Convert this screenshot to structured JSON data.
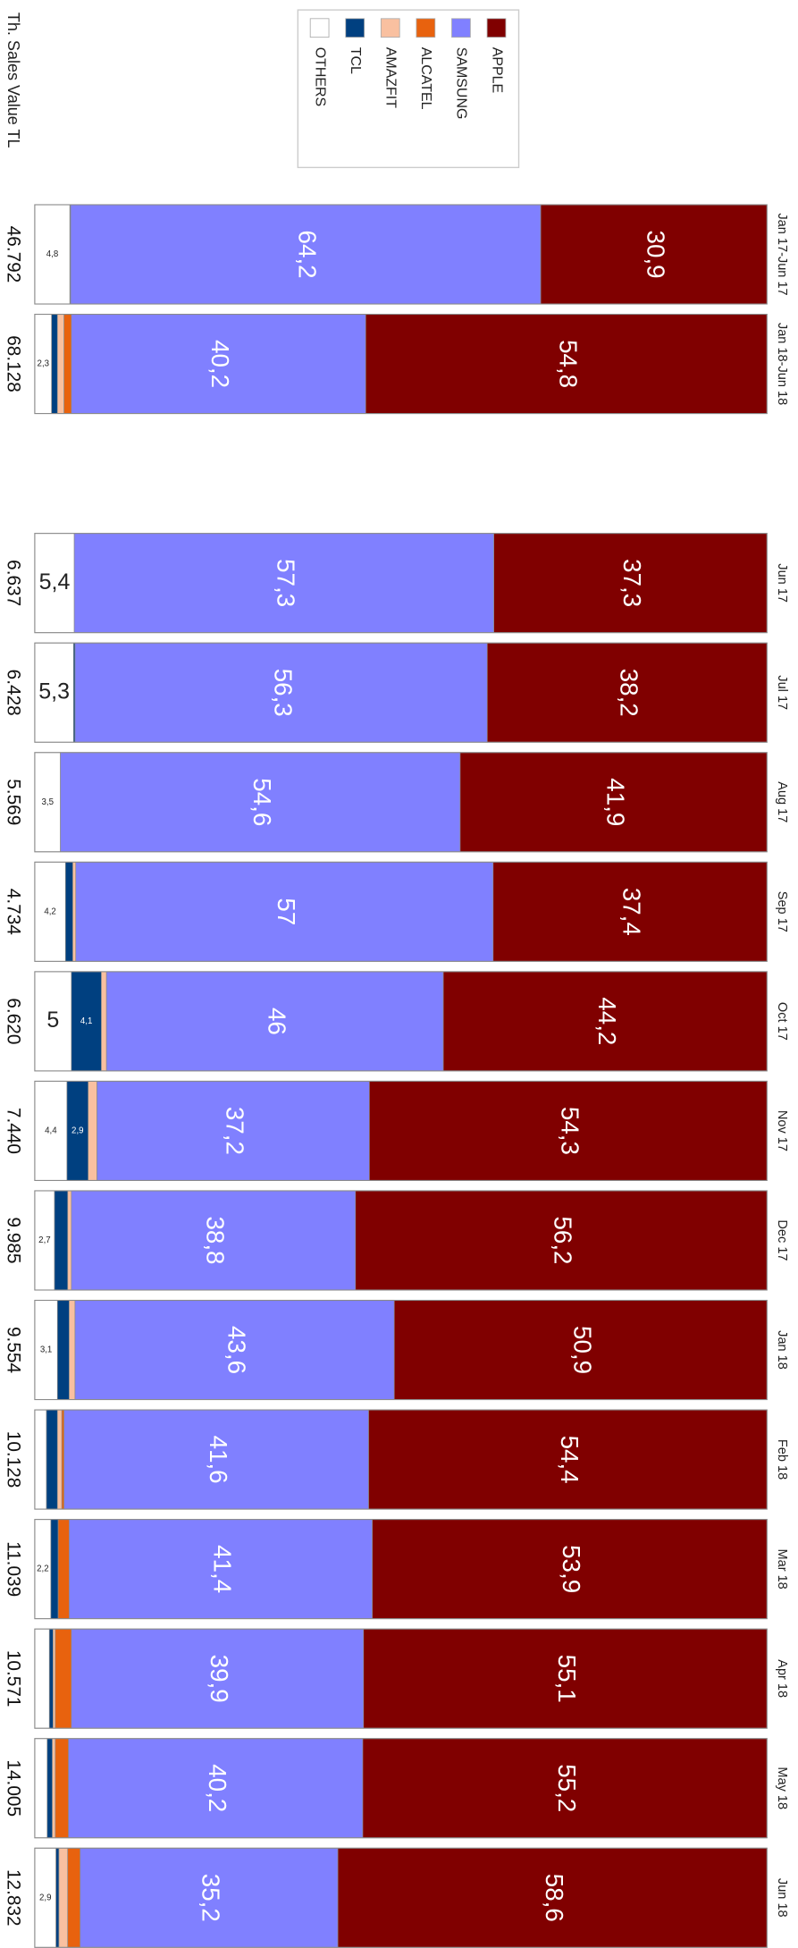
{
  "chart_data": {
    "type": "stacked-bar",
    "categories": [
      "Jan 17-Jun 17",
      "Jan 18-Jun 18",
      null,
      "Jun 17",
      "Jul 17",
      "Aug 17",
      "Sep 17",
      "Oct 17",
      "Nov 17",
      "Dec 17",
      "Jan 18",
      "Feb 18",
      "Mar 18",
      "Apr 18",
      "May 18",
      "Jun 18"
    ],
    "ylim": [
      0,
      100
    ],
    "series": [
      {
        "name": "APPLE",
        "color": "#800000",
        "values": [
          30.9,
          54.8,
          null,
          37.3,
          38.2,
          41.9,
          37.4,
          44.2,
          54.3,
          56.2,
          50.9,
          54.4,
          53.9,
          55.1,
          55.2,
          58.6
        ],
        "value_labels": [
          "30,9",
          "54,8",
          null,
          "37,3",
          "38,2",
          "41,9",
          "37,4",
          "44,2",
          "54,3",
          "56,2",
          "50,9",
          "54,4",
          "53,9",
          "55,1",
          "55,2",
          "58,6"
        ]
      },
      {
        "name": "SAMSUNG",
        "color": "#8080ff",
        "values": [
          64.2,
          40.2,
          null,
          57.3,
          56.3,
          54.6,
          57,
          46,
          37.2,
          38.8,
          43.6,
          41.6,
          41.4,
          39.9,
          40.2,
          35.2
        ],
        "value_labels": [
          "64,2",
          "40,2",
          null,
          "57,3",
          "56,3",
          "54,6",
          "57",
          "46",
          "37,2",
          "38,8",
          "43,6",
          "41,6",
          "41,4",
          "39,9",
          "40,2",
          "35,2"
        ]
      },
      {
        "name": "ALCATEL",
        "color": "#e8620e",
        "values": [
          0,
          1.0,
          null,
          0,
          0,
          0,
          0,
          0,
          0,
          0,
          0,
          0.3,
          1.5,
          2.2,
          1.8,
          1.7
        ]
      },
      {
        "name": "AMAZFIT",
        "color": "#f9c0a0",
        "values": [
          0,
          0.9,
          null,
          0,
          0,
          0,
          0.4,
          0.7,
          1.2,
          0.5,
          0.8,
          0.6,
          0,
          0.3,
          0.4,
          1.2
        ]
      },
      {
        "name": "TCL",
        "color": "#004080",
        "values": [
          0.1,
          0.8,
          null,
          0,
          0.2,
          0,
          1.0,
          4.1,
          2.9,
          1.8,
          1.6,
          1.5,
          1.0,
          0.5,
          0.7,
          0.4
        ],
        "value_labels": [
          null,
          null,
          null,
          null,
          null,
          null,
          null,
          "4,1",
          "2,9",
          null,
          null,
          null,
          null,
          null,
          null,
          null
        ]
      },
      {
        "name": "OTHERS",
        "color": "#ffffff",
        "values": [
          4.8,
          2.3,
          null,
          5.4,
          5.3,
          3.5,
          4.2,
          5,
          4.4,
          2.7,
          3.1,
          1.6,
          2.2,
          2.0,
          1.7,
          2.9
        ],
        "value_labels": [
          "4,8",
          "2,3",
          null,
          "5,4",
          "5,3",
          "3,5",
          "4,2",
          "5",
          "4,4",
          "2,7",
          "3,1",
          null,
          "2,2",
          null,
          null,
          "2,9"
        ]
      }
    ],
    "totals": {
      "label": "Th. Sales Value TL",
      "values": [
        46792,
        68128,
        null,
        6637,
        6428,
        5569,
        4734,
        6620,
        7440,
        9985,
        9554,
        10128,
        11039,
        10571,
        14005,
        12832
      ],
      "value_labels": [
        "46.792",
        "68.128",
        null,
        "6.637",
        "6.428",
        "5.569",
        "4.734",
        "6.620",
        "7.440",
        "9.985",
        "9.554",
        "10.128",
        "11.039",
        "10.571",
        "14.005",
        "12.832"
      ]
    }
  }
}
